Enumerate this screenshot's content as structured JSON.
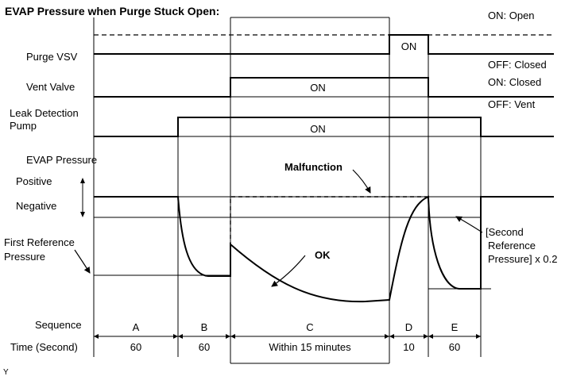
{
  "title": "EVAP Pressure when Purge Stuck Open:",
  "signals": {
    "purge_vsv": {
      "label": "Purge VSV",
      "on_value": "ON",
      "state_on": "ON: Open",
      "state_off": "OFF: Closed"
    },
    "vent_valve": {
      "label": "Vent Valve",
      "on_value": "ON",
      "state_on": "ON: Closed",
      "state_off": "OFF: Vent"
    },
    "leak_pump": {
      "label_line1": "Leak Detection",
      "label_line2": "Pump",
      "on_value": "ON"
    }
  },
  "pressure": {
    "label": "EVAP Pressure",
    "positive": "Positive",
    "negative": "Negative",
    "first_ref_line1": "First Reference",
    "first_ref_line2": "Pressure",
    "malfunction": "Malfunction",
    "ok": "OK",
    "second_ref_line1": "[Second",
    "second_ref_line2": "Reference",
    "second_ref_line3": "Pressure] x 0.2"
  },
  "sequence": {
    "label": "Sequence",
    "time_label": "Time (Second)",
    "phases": [
      {
        "id": "A",
        "time": "60"
      },
      {
        "id": "B",
        "time": "60"
      },
      {
        "id": "C",
        "time": "Within 15 minutes"
      },
      {
        "id": "D",
        "time": "10"
      },
      {
        "id": "E",
        "time": "60"
      }
    ]
  },
  "footer_mark": "Y"
}
